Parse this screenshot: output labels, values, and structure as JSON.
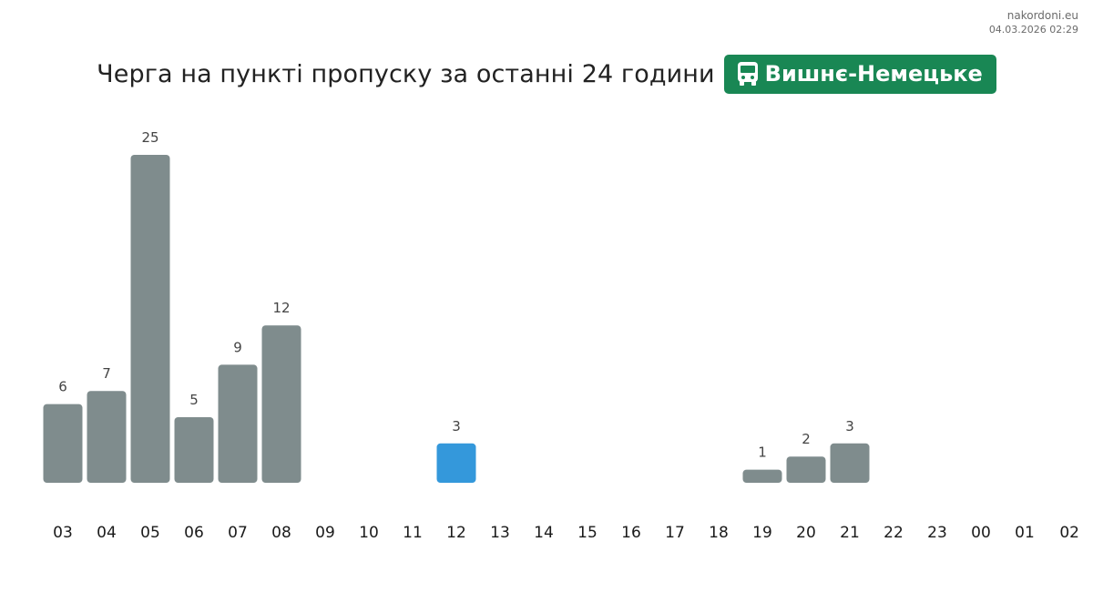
{
  "source": {
    "site": "nakordoni.eu",
    "timestamp": "04.03.2026 02:29"
  },
  "header": {
    "title": "Черга на пункті пропуску за останні 24 години",
    "checkpoint": "Вишнє-Немецьке",
    "badge_icon": "bus-icon",
    "badge_color": "#198754"
  },
  "chart_data": {
    "type": "bar",
    "title": "Черга на пункті пропуску за останні 24 години",
    "categories": [
      "03",
      "04",
      "05",
      "06",
      "07",
      "08",
      "09",
      "10",
      "11",
      "12",
      "13",
      "14",
      "15",
      "16",
      "17",
      "18",
      "19",
      "20",
      "21",
      "22",
      "23",
      "00",
      "01",
      "02"
    ],
    "values": [
      6,
      7,
      25,
      5,
      9,
      12,
      null,
      null,
      null,
      3,
      null,
      null,
      null,
      null,
      null,
      null,
      1,
      2,
      3,
      null,
      null,
      null,
      null,
      null
    ],
    "highlight_index": 9,
    "colors": {
      "bar": "#7f8c8d",
      "highlight": "#3498db"
    },
    "xlabel": "",
    "ylabel": "",
    "ylim": [
      0,
      25
    ],
    "grid": false,
    "legend": "none"
  }
}
